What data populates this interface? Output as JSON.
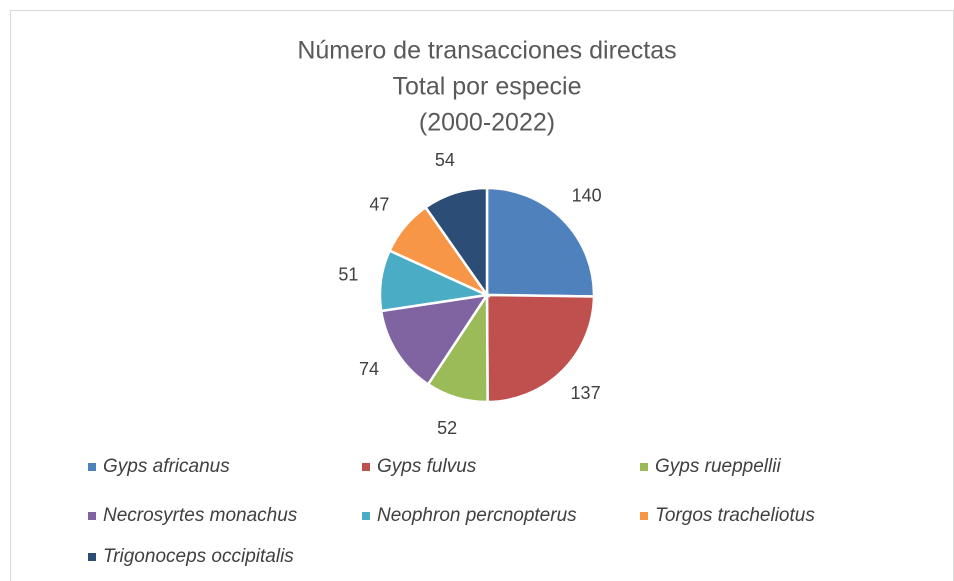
{
  "chart_data": {
    "type": "pie",
    "title": [
      "Número de transacciones directas",
      "Total por especie",
      "(2000-2022)"
    ],
    "categories": [
      "Gyps africanus",
      "Gyps fulvus",
      "Gyps rueppellii",
      "Necrosyrtes monachus",
      "Neophron percnopterus",
      "Torgos tracheliotus",
      "Trigonoceps occipitalis"
    ],
    "values": [
      140,
      137,
      52,
      74,
      51,
      47,
      54
    ],
    "colors": [
      "#4f81bd",
      "#c0504d",
      "#9bbb59",
      "#8064a2",
      "#4bacc6",
      "#f79646",
      "#2c4d75"
    ],
    "legend": "bottom"
  }
}
